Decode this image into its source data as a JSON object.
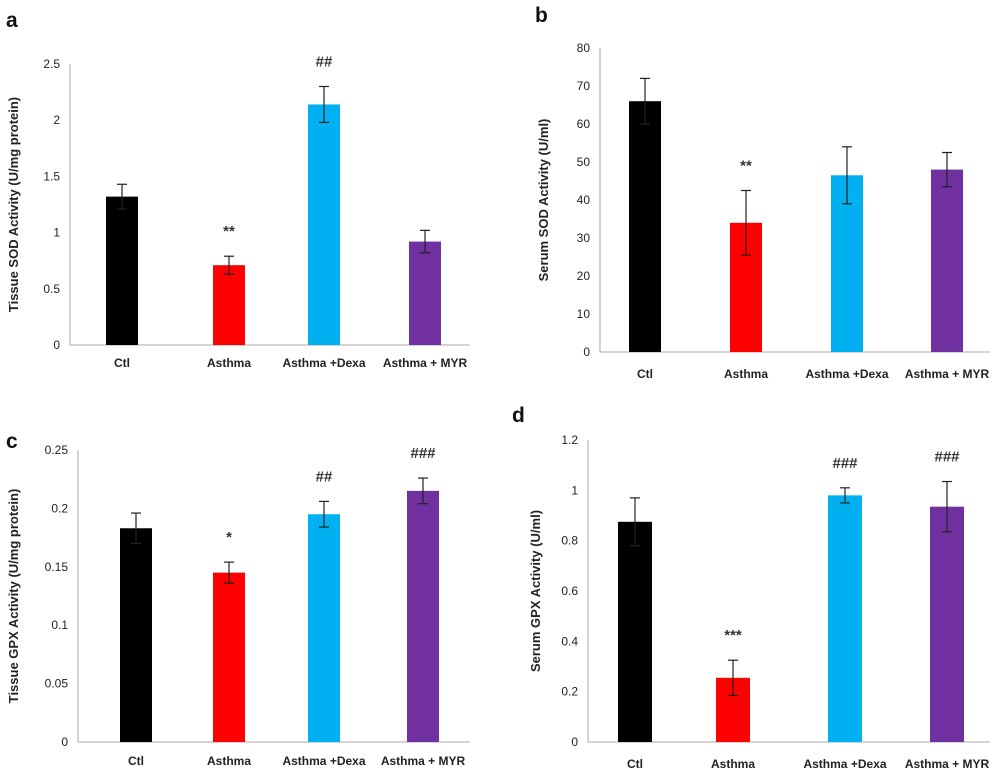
{
  "colors": {
    "Ctl": "#000000",
    "Asthma": "#ff0000",
    "Asthma +Dexa": "#00b0f0",
    "Asthma + MYR": "#7030a0"
  },
  "chart_data": [
    {
      "panel": "a",
      "type": "bar",
      "ylabel": "Tissue SOD Activity (U/mg protein)",
      "ylim": [
        0,
        2.5
      ],
      "yticks": [
        "0",
        "0.5",
        "1",
        "1.5",
        "2",
        "2.5"
      ],
      "categories": [
        "Ctl",
        "Asthma",
        "Asthma +Dexa",
        "Asthma + MYR"
      ],
      "values": [
        1.32,
        0.71,
        2.14,
        0.92
      ],
      "errors": [
        0.11,
        0.08,
        0.16,
        0.1
      ],
      "annotations": [
        "",
        "**",
        "##",
        ""
      ]
    },
    {
      "panel": "b",
      "type": "bar",
      "ylabel": "Serum SOD Activity (U/ml)",
      "ylim": [
        0,
        80
      ],
      "yticks": [
        "0",
        "10",
        "20",
        "30",
        "40",
        "50",
        "60",
        "70",
        "80"
      ],
      "categories": [
        "Ctl",
        "Asthma",
        "Asthma +Dexa",
        "Asthma + MYR"
      ],
      "values": [
        66,
        34,
        46.5,
        48
      ],
      "errors": [
        6,
        8.5,
        7.5,
        4.5
      ],
      "annotations": [
        "",
        "**",
        "",
        ""
      ]
    },
    {
      "panel": "c",
      "type": "bar",
      "ylabel": "Tissue GPX Activity (U/mg protein)",
      "ylim": [
        0,
        0.25
      ],
      "yticks": [
        "0",
        "0.05",
        "0.1",
        "0.15",
        "0.2",
        "0.25"
      ],
      "categories": [
        "Ctl",
        "Asthma",
        "Asthma +Dexa",
        "Asthma + MYR"
      ],
      "values": [
        0.183,
        0.145,
        0.195,
        0.215
      ],
      "errors": [
        0.013,
        0.009,
        0.011,
        0.011
      ],
      "annotations": [
        "",
        "*",
        "##",
        "###"
      ]
    },
    {
      "panel": "d",
      "type": "bar",
      "ylabel": "Serum GPX Activity (U/ml)",
      "ylim": [
        0,
        1.2
      ],
      "yticks": [
        "0",
        "0.2",
        "0.4",
        "0.6",
        "0.8",
        "1",
        "1.2"
      ],
      "categories": [
        "Ctl",
        "Asthma",
        "Asthma +Dexa",
        "Asthma + MYR"
      ],
      "values": [
        0.875,
        0.255,
        0.98,
        0.935
      ],
      "errors": [
        0.095,
        0.07,
        0.03,
        0.1
      ],
      "annotations": [
        "",
        "***",
        "###",
        "###"
      ]
    }
  ]
}
